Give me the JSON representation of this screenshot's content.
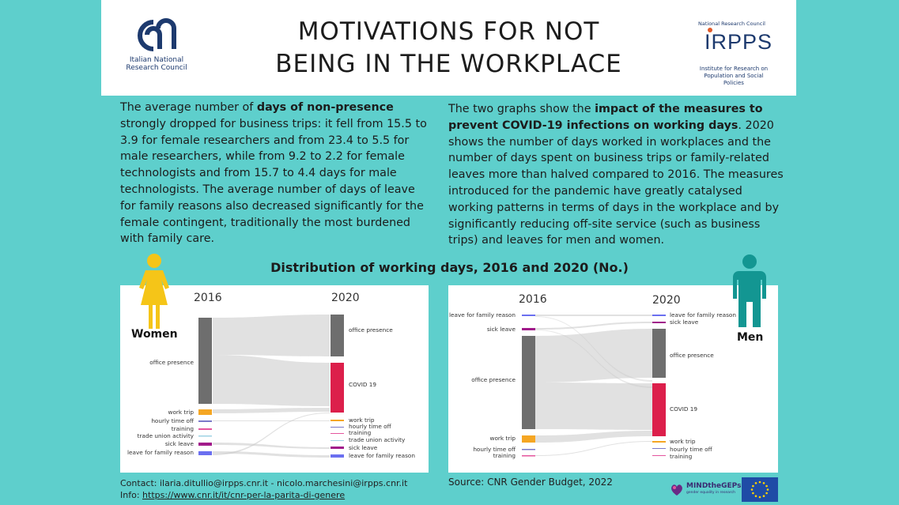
{
  "header": {
    "title_line1": "MOTIVATIONS FOR NOT",
    "title_line2": "BEING IN THE WORKPLACE",
    "cnr_line1": "Italian National",
    "cnr_line2": "Research Council",
    "irpps_top": "National Research Council",
    "irpps_mark": "IRPPS",
    "irpps_sub_line1": "Institute for Research on",
    "irpps_sub_line2": "Population and Social Policies"
  },
  "left_text": {
    "pre": "The average number of ",
    "bold": "days of non-presence",
    "post": " strongly dropped for business trips: it fell from 15.5 to 3.9 for female researchers and from 23.4 to 5.5 for male researchers, while from 9.2 to 2.2 for female technologists and from 15.7 to 4.4 days for male technologists. The average number of days of leave for family reasons also decreased significantly for the female contingent, traditionally the most burdened with family care."
  },
  "right_text": {
    "pre": "The two graphs show the ",
    "bold": "impact of the measures to prevent COVID-19 infections on working days",
    "post": ". 2020 shows the number of days worked in workplaces and the number of days spent on business trips or family-related leaves more than halved compared to 2016. The measures introduced for the pandemic have greatly catalysed working patterns in terms of days in the workplace and by significantly reducing off-site service (such as business trips) and leaves for men and women."
  },
  "distribution_title": "Distribution of working days, 2016 and 2020 (No.)",
  "women_label": "Women",
  "men_label": "Men",
  "women_chart": {
    "year_left": "2016",
    "year_right": "2020",
    "left_nodes": [
      "office presence",
      "work trip",
      "hourly time off",
      "training",
      "trade union activity",
      "sick leave",
      "leave for family reason"
    ],
    "right_nodes": [
      "office presence",
      "COVID 19",
      "work trip",
      "hourly time off",
      "training",
      "trade union activity",
      "sick leave",
      "leave for family reason"
    ]
  },
  "men_chart": {
    "year_left": "2016",
    "year_right": "2020",
    "left_nodes": [
      "leave for family reason",
      "sick leave",
      "office presence",
      "work trip",
      "hourly time off",
      "training"
    ],
    "right_nodes": [
      "leave for family reason",
      "sick leave",
      "office presence",
      "COVID 19",
      "work trip",
      "hourly time off",
      "training"
    ]
  },
  "colors": {
    "background": "#5ecfcc",
    "office": "#6e6e6e",
    "covid": "#dc1f4b",
    "work_trip": "#f5a623",
    "hourly": "#7a79c8",
    "training": "#e4559e",
    "union": "#9fd3e4",
    "sick": "#a11a8a",
    "family": "#6b6ff0",
    "women_figure": "#f5c518",
    "men_figure": "#139692"
  },
  "footer": {
    "contact": "Contact: ilaria.ditullio@irpps.cnr.it - nicolo.marchesini@irpps.cnr.it",
    "info_label": "Info: ",
    "info_link": "https://www.cnr.it/it/cnr-per-la-parita-di-genere",
    "source": "Source: CNR Gender Budget, 2022",
    "mind_logo": "MINDtheGEPs",
    "mind_sub": "gender equality in research"
  }
}
